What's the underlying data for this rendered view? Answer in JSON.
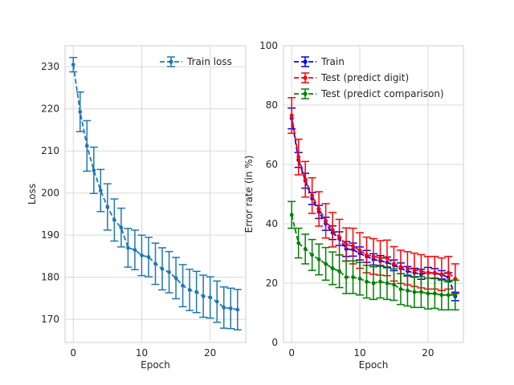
{
  "chart_data": [
    {
      "type": "line",
      "xlabel": "Epoch",
      "ylabel": "Loss",
      "xlim": [
        -1.2,
        25.2
      ],
      "ylim": [
        164.5,
        235
      ],
      "xticks": [
        0,
        10,
        20
      ],
      "yticks": [
        170,
        180,
        190,
        200,
        210,
        220,
        230
      ],
      "grid": true,
      "legend_position": "top-right",
      "series": [
        {
          "name": "Train loss",
          "color": "#1f77b4",
          "linestyle": "dashed",
          "error_bars": true,
          "x": [
            0,
            1,
            2,
            3,
            4,
            5,
            6,
            7,
            8,
            9,
            10,
            11,
            12,
            13,
            14,
            15,
            16,
            17,
            18,
            19,
            20,
            21,
            22,
            23,
            24
          ],
          "y": [
            230.5,
            219.3,
            211.2,
            205.4,
            200.6,
            196.7,
            193.6,
            191.8,
            187.0,
            186.5,
            185.2,
            184.8,
            183.2,
            182.0,
            181.2,
            179.8,
            178.0,
            177.0,
            176.5,
            175.5,
            175.2,
            174.2,
            172.8,
            172.6,
            172.3
          ],
          "err": [
            1.7,
            4.7,
            6.0,
            5.5,
            5.0,
            5.5,
            5.0,
            4.6,
            4.6,
            4.7,
            4.8,
            4.7,
            4.9,
            5.0,
            4.9,
            4.9,
            5.0,
            4.9,
            4.9,
            5.0,
            4.9,
            4.9,
            4.9,
            4.8,
            4.8
          ]
        }
      ]
    },
    {
      "type": "line",
      "xlabel": "Epoch",
      "ylabel": "Error rate (in %)",
      "xlim": [
        -1.2,
        25.2
      ],
      "ylim": [
        0,
        100
      ],
      "xticks": [
        0,
        10,
        20
      ],
      "yticks": [
        0,
        20,
        40,
        60,
        80,
        100
      ],
      "grid": true,
      "legend_position": "top-left",
      "series": [
        {
          "name": "Train",
          "color": "#0000ff",
          "linestyle": "dashed",
          "error_bars": true,
          "x": [
            0,
            1,
            2,
            3,
            4,
            5,
            6,
            7,
            8,
            9,
            10,
            11,
            12,
            13,
            14,
            15,
            16,
            17,
            18,
            19,
            20,
            21,
            22,
            23,
            24
          ],
          "y": [
            75.5,
            61.5,
            54.5,
            48.5,
            44.0,
            40.0,
            37.0,
            35.0,
            31.5,
            31.3,
            30.0,
            29.0,
            28.0,
            27.5,
            27.0,
            26.0,
            25.0,
            24.0,
            23.5,
            23.0,
            23.5,
            23.3,
            22.8,
            22.0,
            15.5
          ],
          "err": [
            3.5,
            2.5,
            2.5,
            2.0,
            2.2,
            2.2,
            2.3,
            2.3,
            2.5,
            2.2,
            2.2,
            2.0,
            1.9,
            1.8,
            1.8,
            1.8,
            1.8,
            1.6,
            1.5,
            1.7,
            1.8,
            1.6,
            1.4,
            1.5,
            1.4
          ]
        },
        {
          "name": "Test (predict digit)",
          "color": "#ff0000",
          "linestyle": "dashed",
          "error_bars": true,
          "x": [
            0,
            1,
            2,
            3,
            4,
            5,
            6,
            7,
            8,
            9,
            10,
            11,
            12,
            13,
            14,
            15,
            16,
            17,
            18,
            19,
            20,
            21,
            22,
            23,
            24
          ],
          "y": [
            76.5,
            62.5,
            55.0,
            49.5,
            45.0,
            41.0,
            38.0,
            35.5,
            33.0,
            32.5,
            31.0,
            29.5,
            29.0,
            28.5,
            28.5,
            26.5,
            25.5,
            25.0,
            24.5,
            24.0,
            23.5,
            23.5,
            23.0,
            23.5,
            21.5
          ],
          "err": [
            6.0,
            6.0,
            6.0,
            6.0,
            5.8,
            5.8,
            5.8,
            6.0,
            5.6,
            6.0,
            6.0,
            6.0,
            6.0,
            5.8,
            6.0,
            5.8,
            5.6,
            5.6,
            5.6,
            5.6,
            5.5,
            5.5,
            5.5,
            5.5,
            5.0
          ]
        },
        {
          "name": "Test (predict comparison)",
          "color": "#008000",
          "linestyle": "dashed",
          "error_bars": true,
          "x": [
            0,
            1,
            2,
            3,
            4,
            5,
            6,
            7,
            8,
            9,
            10,
            11,
            12,
            13,
            14,
            15,
            16,
            17,
            18,
            19,
            20,
            21,
            22,
            23,
            24
          ],
          "y": [
            43.0,
            33.5,
            31.5,
            29.5,
            28.0,
            26.5,
            25.0,
            24.0,
            22.0,
            22.0,
            21.5,
            20.5,
            20.0,
            20.5,
            20.0,
            19.5,
            18.0,
            17.5,
            17.0,
            17.0,
            16.5,
            16.5,
            16.0,
            16.0,
            16.0
          ],
          "err": [
            4.5,
            5.0,
            5.0,
            5.2,
            5.2,
            5.5,
            5.5,
            5.5,
            5.5,
            5.5,
            5.5,
            5.5,
            5.5,
            5.5,
            5.5,
            5.3,
            5.2,
            5.2,
            5.2,
            5.2,
            5.2,
            5.0,
            5.0,
            5.0,
            5.0
          ]
        }
      ]
    }
  ]
}
